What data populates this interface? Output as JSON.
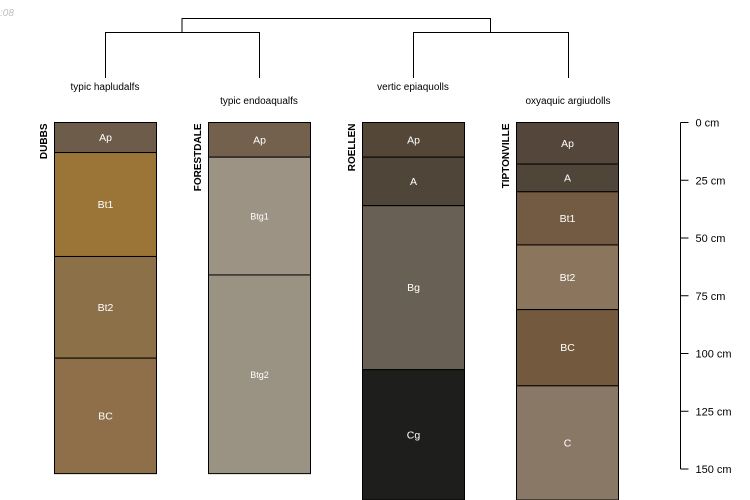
{
  "corner_label": ":08",
  "taxa": {
    "left": "typic hapludalfs",
    "left_mid": "typic endoaqualfs",
    "right_mid": "vertic epiaquolls",
    "right": "oxyaquic argiudolls"
  },
  "depth_axis": {
    "ticks": [
      {
        "depth": 0,
        "label": "0 cm"
      },
      {
        "depth": 25,
        "label": "25 cm"
      },
      {
        "depth": 50,
        "label": "50 cm"
      },
      {
        "depth": 75,
        "label": "75 cm"
      },
      {
        "depth": 100,
        "label": "100 cm"
      },
      {
        "depth": 125,
        "label": "125 cm"
      },
      {
        "depth": 150,
        "label": "150 cm"
      }
    ]
  },
  "profiles": [
    {
      "name": "DUBBS",
      "taxon": "typic hapludalfs",
      "horizons": [
        {
          "label": "Ap",
          "top": 0,
          "bottom": 13,
          "color": "#6e5c4a"
        },
        {
          "label": "Bt1",
          "top": 13,
          "bottom": 58,
          "color": "#9b7437"
        },
        {
          "label": "Bt2",
          "top": 58,
          "bottom": 102,
          "color": "#8c7048"
        },
        {
          "label": "BC",
          "top": 102,
          "bottom": 152,
          "color": "#8e6f4a"
        }
      ]
    },
    {
      "name": "FORESTDALE",
      "taxon": "typic endoaqualfs",
      "horizons": [
        {
          "label": "Ap",
          "top": 0,
          "bottom": 15,
          "color": "#73604d"
        },
        {
          "label": "Btg1",
          "top": 15,
          "bottom": 66,
          "color": "#9c9384"
        },
        {
          "label": "Btg2",
          "top": 66,
          "bottom": 152,
          "color": "#9a9283"
        }
      ]
    },
    {
      "name": "ROELLEN",
      "taxon": "vertic epiaquolls",
      "horizons": [
        {
          "label": "Ap",
          "top": 0,
          "bottom": 15,
          "color": "#554737"
        },
        {
          "label": "A",
          "top": 15,
          "bottom": 36,
          "color": "#4f4538"
        },
        {
          "label": "Bg",
          "top": 36,
          "bottom": 107,
          "color": "#686055"
        },
        {
          "label": "Cg",
          "top": 107,
          "bottom": 165,
          "color": "#1e1f1d"
        }
      ]
    },
    {
      "name": "TIPTONVILLE",
      "taxon": "oxyaquic argiudolls",
      "horizons": [
        {
          "label": "Ap",
          "top": 0,
          "bottom": 18,
          "color": "#54463a"
        },
        {
          "label": "A",
          "top": 18,
          "bottom": 30,
          "color": "#4f4538"
        },
        {
          "label": "Bt1",
          "top": 30,
          "bottom": 53,
          "color": "#725b42"
        },
        {
          "label": "Bt2",
          "top": 53,
          "bottom": 81,
          "color": "#8b755c"
        },
        {
          "label": "BC",
          "top": 81,
          "bottom": 114,
          "color": "#735a3f"
        },
        {
          "label": "C",
          "top": 114,
          "bottom": 165,
          "color": "#8a7866"
        }
      ]
    }
  ]
}
